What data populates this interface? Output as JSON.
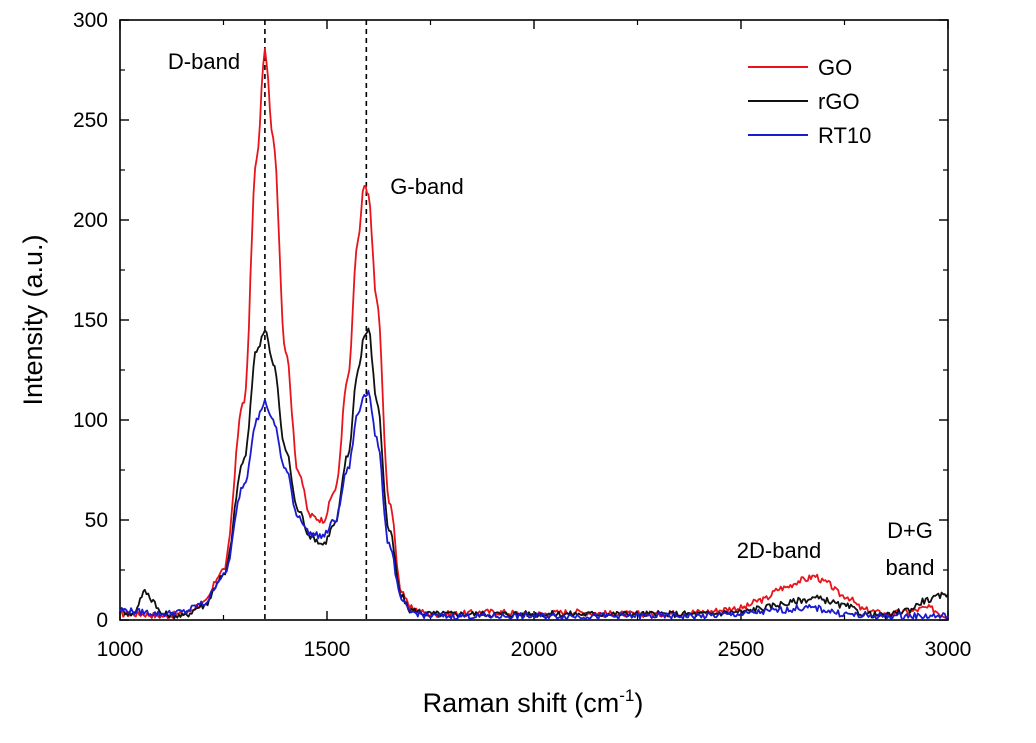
{
  "chart_data": {
    "type": "line",
    "xlabel": "Raman shift (cm",
    "xlabel_sup": "-1",
    "xlabel_end": ")",
    "ylabel": "Intensity (a.u.)",
    "xlim": [
      1000,
      3000
    ],
    "ylim": [
      0,
      300
    ],
    "xticks": [
      1000,
      1500,
      2000,
      2500,
      3000
    ],
    "yticks": [
      0,
      50,
      100,
      150,
      200,
      250,
      300
    ],
    "grid": false,
    "legend_position": "top-right",
    "reference_lines": [
      1350,
      1595
    ],
    "annotations": [
      {
        "text": "D-band",
        "x": 1350
      },
      {
        "text": "G-band",
        "x": 1595
      },
      {
        "text": "2D-band",
        "x": 2680
      },
      {
        "text": "D+G",
        "x": 2940
      },
      {
        "text": "band",
        "x": 2940
      }
    ],
    "series": [
      {
        "name": "GO",
        "color": "#e8141c",
        "x": [
          1000,
          1050,
          1100,
          1150,
          1200,
          1250,
          1300,
          1330,
          1350,
          1370,
          1400,
          1430,
          1460,
          1490,
          1520,
          1550,
          1575,
          1590,
          1600,
          1620,
          1650,
          1680,
          1700,
          1750,
          1800,
          1900,
          2000,
          2100,
          2200,
          2300,
          2400,
          2500,
          2550,
          2600,
          2650,
          2680,
          2700,
          2750,
          2800,
          2850,
          2900,
          2950,
          3000
        ],
        "y": [
          3,
          3,
          2,
          3,
          8,
          25,
          110,
          230,
          284,
          240,
          135,
          75,
          52,
          50,
          65,
          120,
          190,
          217,
          212,
          160,
          60,
          15,
          6,
          3,
          3,
          4,
          3,
          4,
          3,
          3,
          4,
          6,
          10,
          16,
          20,
          22,
          19,
          12,
          5,
          3,
          4,
          6,
          2
        ]
      },
      {
        "name": "rGO",
        "color": "#111111",
        "x": [
          1000,
          1030,
          1060,
          1080,
          1100,
          1150,
          1200,
          1250,
          1300,
          1330,
          1350,
          1370,
          1400,
          1430,
          1460,
          1490,
          1520,
          1550,
          1575,
          1590,
          1600,
          1620,
          1650,
          1680,
          1700,
          1750,
          1800,
          1900,
          2000,
          2100,
          2200,
          2300,
          2400,
          2500,
          2550,
          2600,
          2650,
          2680,
          2700,
          2750,
          2800,
          2850,
          2900,
          2950,
          3000
        ],
        "y": [
          5,
          3,
          14,
          10,
          3,
          2,
          7,
          22,
          80,
          135,
          145,
          128,
          85,
          55,
          42,
          38,
          48,
          82,
          125,
          142,
          145,
          110,
          45,
          12,
          5,
          3,
          3,
          3,
          3,
          3,
          3,
          3,
          3,
          4,
          6,
          8,
          10,
          11,
          10,
          7,
          3,
          2,
          5,
          10,
          13
        ]
      },
      {
        "name": "RT10",
        "color": "#1a1ad0",
        "x": [
          1000,
          1050,
          1100,
          1150,
          1200,
          1250,
          1300,
          1330,
          1350,
          1370,
          1400,
          1430,
          1460,
          1490,
          1520,
          1550,
          1575,
          1590,
          1600,
          1620,
          1650,
          1680,
          1700,
          1750,
          1800,
          1900,
          2000,
          2100,
          2200,
          2300,
          2400,
          2500,
          2550,
          2600,
          2650,
          2680,
          2700,
          2750,
          2800,
          2850,
          2900,
          2950,
          3000
        ],
        "y": [
          5,
          4,
          3,
          4,
          8,
          22,
          68,
          100,
          109,
          99,
          75,
          52,
          43,
          42,
          50,
          75,
          103,
          113,
          114,
          90,
          38,
          10,
          4,
          2,
          2,
          2,
          2,
          2,
          2,
          2,
          2,
          3,
          4,
          5,
          6,
          6,
          5,
          3,
          2,
          2,
          2,
          2,
          2
        ]
      }
    ]
  }
}
